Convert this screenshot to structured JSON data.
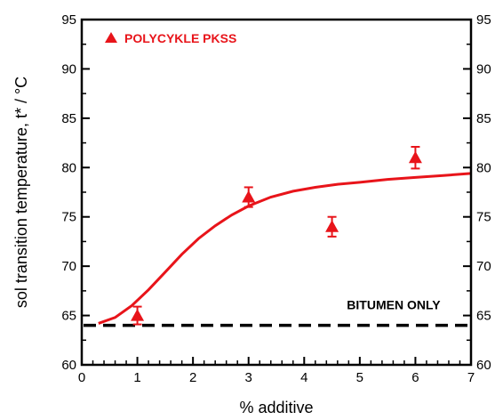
{
  "chart_data": {
    "type": "scatter",
    "xlabel": "% additive",
    "ylabel": "sol transition temperature, t* / °C",
    "xlim": [
      0,
      7
    ],
    "ylim": [
      60,
      95
    ],
    "x_ticks": [
      0,
      1,
      2,
      3,
      4,
      5,
      6,
      7
    ],
    "y_ticks": [
      60,
      65,
      70,
      75,
      80,
      85,
      90,
      95
    ],
    "right_y_ticks": [
      60,
      65,
      70,
      75,
      80,
      85,
      90,
      95
    ],
    "grid": false,
    "legend_position": "top-left",
    "series": [
      {
        "name": "POLYCYKLE PKSS",
        "marker": "triangle",
        "color": "#e8141a",
        "points": [
          {
            "x": 1,
            "y": 65.0,
            "err": 0.9
          },
          {
            "x": 3,
            "y": 77.0,
            "err": 1.0
          },
          {
            "x": 4.5,
            "y": 74.0,
            "err": 1.0
          },
          {
            "x": 6,
            "y": 81.0,
            "err": 1.1
          }
        ]
      }
    ],
    "fit_curve": {
      "color": "#e8141a",
      "x": [
        0.3,
        0.6,
        0.9,
        1.2,
        1.5,
        1.8,
        2.1,
        2.4,
        2.7,
        3.0,
        3.4,
        3.8,
        4.2,
        4.6,
        5.0,
        5.5,
        6.0,
        6.5,
        7.0
      ],
      "y": [
        64.2,
        64.8,
        66.0,
        67.6,
        69.4,
        71.2,
        72.8,
        74.1,
        75.2,
        76.1,
        77.0,
        77.6,
        78.0,
        78.3,
        78.5,
        78.8,
        79.0,
        79.2,
        79.4
      ]
    },
    "reference_line": {
      "label": "BITUMEN ONLY",
      "y": 64,
      "style": "dashed",
      "color": "#000000"
    }
  }
}
